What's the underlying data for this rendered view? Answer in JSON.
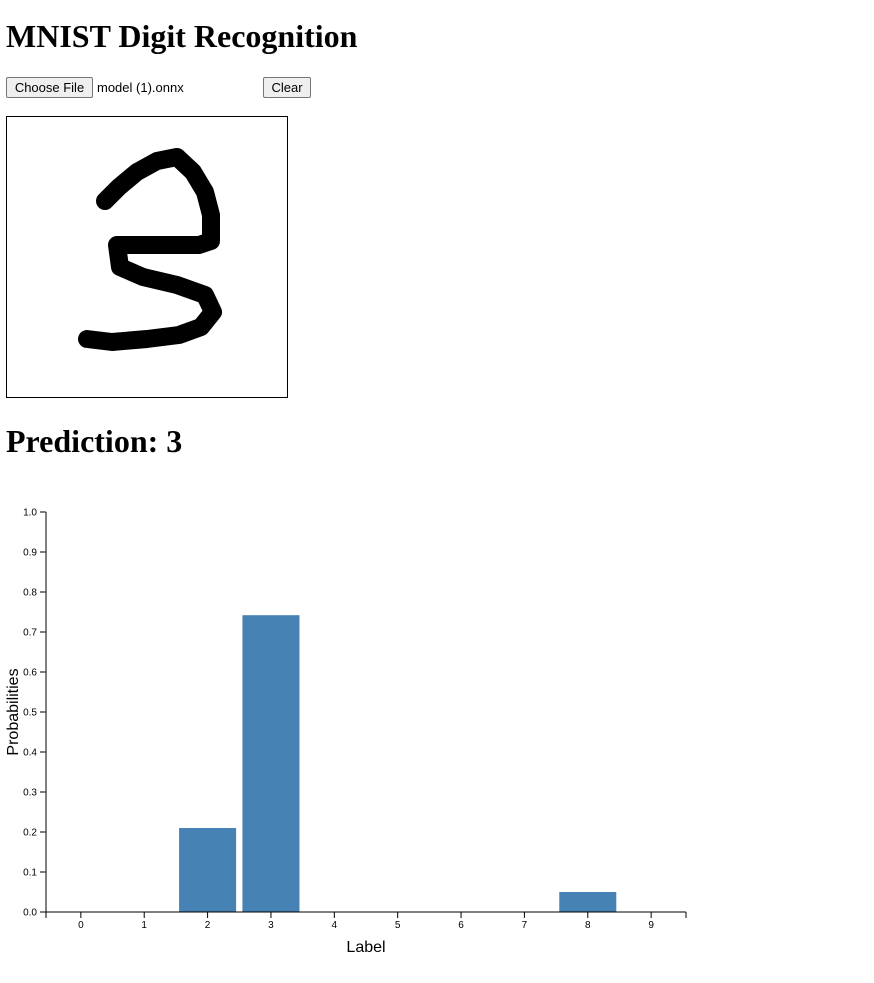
{
  "page": {
    "title": "MNIST Digit Recognition"
  },
  "controls": {
    "choose_file_label": "Choose File",
    "file_name": "model (1).onnx",
    "clear_label": "Clear"
  },
  "prediction": {
    "label": "Prediction: 3"
  },
  "chart_data": {
    "type": "bar",
    "categories": [
      "0",
      "1",
      "2",
      "3",
      "4",
      "5",
      "6",
      "7",
      "8",
      "9"
    ],
    "values": [
      0.0,
      0.0,
      0.21,
      0.742,
      0.0,
      0.0,
      0.0,
      0.0,
      0.05,
      0.0
    ],
    "xlabel": "Label",
    "ylabel": "Probabilities",
    "ylim": [
      0,
      1
    ],
    "y_ticks": [
      "0.0",
      "0.1",
      "0.2",
      "0.3",
      "0.4",
      "0.5",
      "0.6",
      "0.7",
      "0.8",
      "0.9",
      "1.0"
    ],
    "bar_color": "#4682b4",
    "grid": false
  }
}
